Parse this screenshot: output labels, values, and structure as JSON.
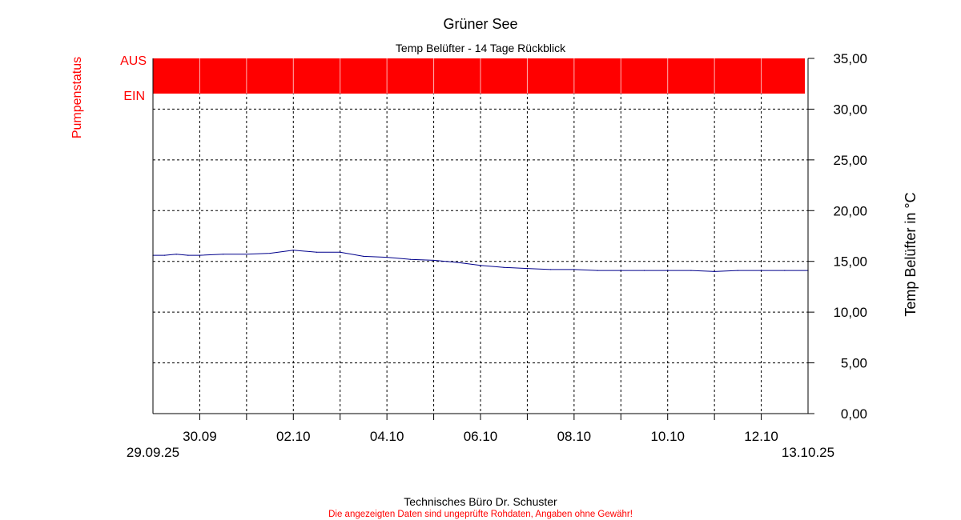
{
  "chart_data": {
    "type": "line",
    "title": "Grüner See",
    "subtitle": "Temp Belüfter - 14 Tage Rückblick",
    "ylabel": "Temp Belüfter in °C",
    "status_label": "Pumpenstatus",
    "status_levels": [
      "AUS",
      "EIN"
    ],
    "status_value": "AUS",
    "status_color": "#ff0000",
    "line_color": "#00008b",
    "grid": true,
    "ylim": [
      0,
      35
    ],
    "yticks": [
      "0,00",
      "5,00",
      "10,00",
      "15,00",
      "20,00",
      "25,00",
      "30,00",
      "35,00"
    ],
    "xlim": [
      "2025-09-29T00:00",
      "2025-10-13T00:00"
    ],
    "xticks": [
      "30.09",
      "02.10",
      "04.10",
      "06.10",
      "08.10",
      "10.10",
      "12.10"
    ],
    "x_start_label": "29.09.25",
    "x_end_label": "13.10.25",
    "series": [
      {
        "x": [
          "2025-09-29T00:00",
          "2025-09-29T06:00",
          "2025-09-29T12:00",
          "2025-09-29T18:00",
          "2025-09-30T00:00",
          "2025-09-30T12:00",
          "2025-10-01T00:00",
          "2025-10-01T12:00",
          "2025-10-02T00:00",
          "2025-10-02T12:00",
          "2025-10-03T00:00",
          "2025-10-03T12:00",
          "2025-10-04T00:00",
          "2025-10-04T12:00",
          "2025-10-05T00:00",
          "2025-10-05T12:00",
          "2025-10-06T00:00",
          "2025-10-06T12:00",
          "2025-10-07T00:00",
          "2025-10-07T12:00",
          "2025-10-08T00:00",
          "2025-10-08T12:00",
          "2025-10-09T00:00",
          "2025-10-09T12:00",
          "2025-10-10T00:00",
          "2025-10-10T12:00",
          "2025-10-11T00:00",
          "2025-10-11T12:00",
          "2025-10-12T00:00",
          "2025-10-12T12:00",
          "2025-10-13T00:00"
        ],
        "values": [
          15.6,
          15.6,
          15.7,
          15.6,
          15.6,
          15.7,
          15.7,
          15.8,
          16.1,
          15.9,
          15.9,
          15.5,
          15.4,
          15.2,
          15.1,
          14.9,
          14.6,
          14.4,
          14.3,
          14.2,
          14.2,
          14.1,
          14.1,
          14.1,
          14.1,
          14.1,
          14.0,
          14.1,
          14.1,
          14.1,
          14.1
        ]
      }
    ]
  },
  "footer": {
    "company": "Technisches Büro Dr. Schuster",
    "disclaimer": "Die angezeigten Daten sind ungeprüfte Rohdaten, Angaben ohne Gewähr!"
  }
}
